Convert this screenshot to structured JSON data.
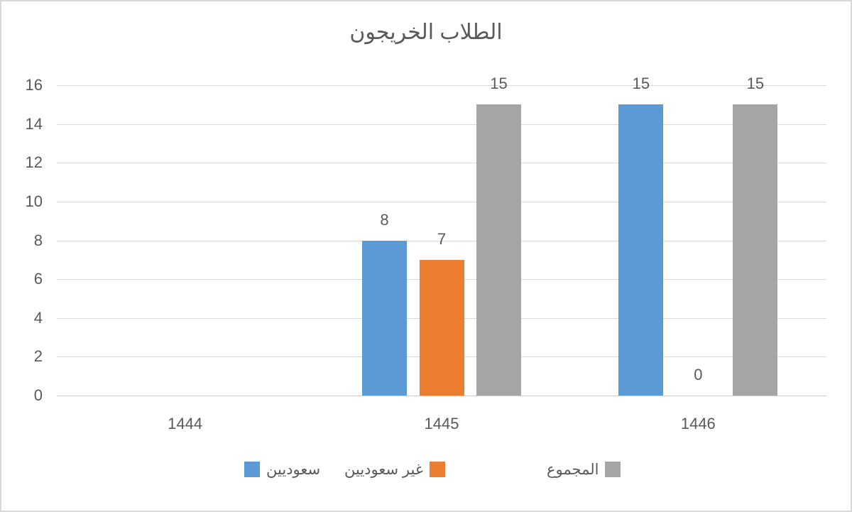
{
  "chart_data": {
    "type": "bar",
    "title": "الطلاب الخريجون",
    "categories": [
      "1444",
      "1445",
      "1446"
    ],
    "series": [
      {
        "id": "saudis",
        "name": "سعوديين",
        "color": "#5B9BD5",
        "values": [
          null,
          8,
          15
        ]
      },
      {
        "id": "non_saudis",
        "name": "غير سعوديين",
        "color": "#ED7D31",
        "values": [
          null,
          7,
          0
        ]
      },
      {
        "id": "total",
        "name": "المجموع",
        "color": "#A5A5A5",
        "values": [
          null,
          15,
          15
        ]
      }
    ],
    "xlabel": "",
    "ylabel": "",
    "ylim": [
      0,
      16
    ],
    "ytick_step": 2,
    "grid": true,
    "data_labels": true,
    "legend_position": "bottom"
  },
  "colors": {
    "grid": "#D9D9D9",
    "axis_line": "#C9C9C9",
    "text": "#595959",
    "frame_border": "#D9D9D9",
    "background": "#FFFFFF"
  }
}
